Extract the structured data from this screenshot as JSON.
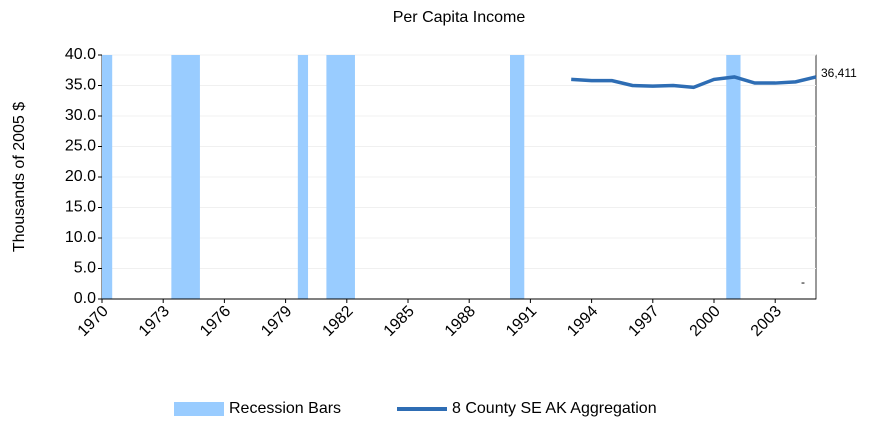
{
  "chart_data": {
    "type": "line",
    "title": "Per Capita Income",
    "y_label": "Thousands of 2005 $",
    "xlim": [
      1970,
      2005
    ],
    "xticks": [
      1970,
      1973,
      1976,
      1979,
      1982,
      1985,
      1988,
      1991,
      1994,
      1997,
      2000,
      2003
    ],
    "ylim": [
      0,
      40
    ],
    "yticks": [
      {
        "value": 0,
        "label": "0.0"
      },
      {
        "value": 5,
        "label": "5.0"
      },
      {
        "value": 10,
        "label": "10.0"
      },
      {
        "value": 15,
        "label": "15.0"
      },
      {
        "value": 20,
        "label": "20.0"
      },
      {
        "value": 25,
        "label": "25.0"
      },
      {
        "value": 30,
        "label": "30.0"
      },
      {
        "value": 35,
        "label": "35.0"
      },
      {
        "value": 40,
        "label": "40.0"
      }
    ],
    "grid": true,
    "recessions": {
      "name": "Recession Bars",
      "color": "#99ccff",
      "x_start": [
        1970,
        1973.4,
        1979.6,
        1981.0,
        1990.0,
        2000.6
      ],
      "x_end": [
        1970.5,
        1974.8,
        1980.1,
        1982.4,
        1990.7,
        2001.3
      ],
      "values": [
        40,
        40,
        40,
        40,
        40,
        40
      ]
    },
    "series": [
      {
        "name": "8 County SE AK Aggregation",
        "color": "#2e6db4",
        "x": [
          1993,
          1994,
          1995,
          1996,
          1997,
          1998,
          1999,
          2000,
          2001,
          2002,
          2003,
          2004,
          2005
        ],
        "values": [
          36.0,
          35.8,
          35.8,
          35.0,
          34.9,
          35.0,
          34.7,
          36.0,
          36.4,
          35.4,
          35.4,
          35.6,
          36.411
        ],
        "value_labels": [
          null,
          null,
          null,
          null,
          null,
          null,
          null,
          null,
          null,
          null,
          null,
          null,
          "36,411"
        ]
      }
    ],
    "annotation": "-"
  }
}
